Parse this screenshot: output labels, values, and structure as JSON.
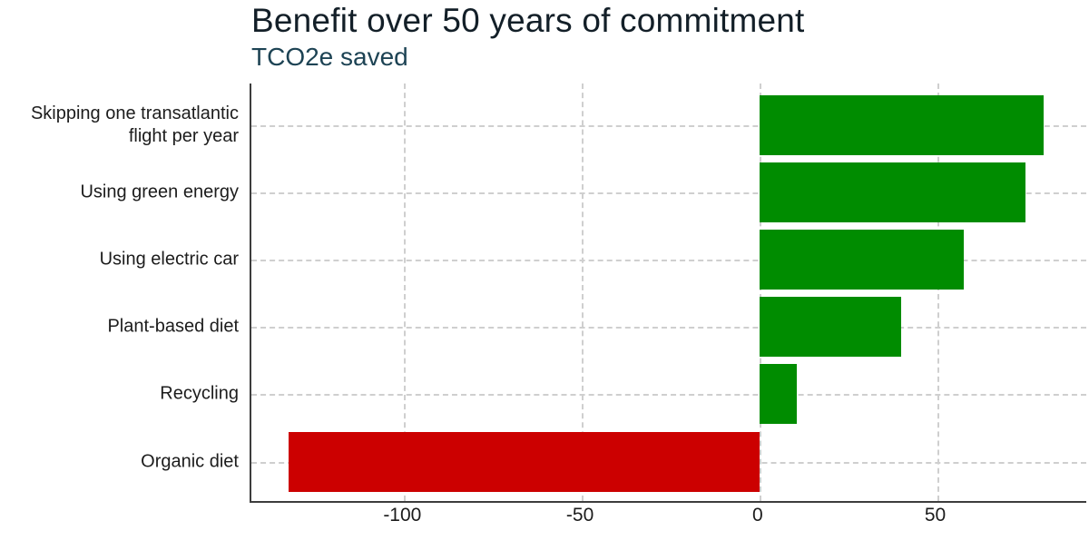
{
  "title": "Benefit over 50 years of commitment",
  "subtitle": "TCO2e saved",
  "colors": {
    "positive_bar": "#008c00",
    "negative_bar": "#cc0000",
    "title_text": "#131f28",
    "subtitle_text": "#1d4354",
    "axis_line": "#3d3d3d",
    "gridline": "#cfcfcf",
    "tick_text": "#1c1c1c"
  },
  "chart_data": {
    "type": "bar",
    "orientation": "horizontal",
    "title": "Benefit over 50 years of commitment",
    "subtitle": "TCO2e saved",
    "ylabel": "",
    "xlabel": "",
    "categories": [
      "Skipping one transatlantic\nflight per year",
      "Using green energy",
      "Using electric car",
      "Plant-based diet",
      "Recycling",
      "Organic diet"
    ],
    "values": [
      80,
      75,
      57.5,
      40,
      10.5,
      -132.5
    ],
    "xlim": [
      -143,
      92
    ],
    "xticks": [
      -100,
      -50,
      0,
      50
    ],
    "xtick_labels": [
      "-100",
      "-50",
      "0",
      "50"
    ],
    "grid": true,
    "legend": "none"
  }
}
